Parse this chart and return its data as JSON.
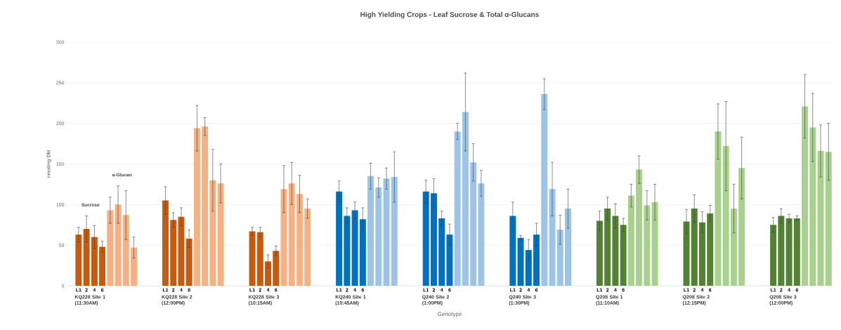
{
  "chart_data": {
    "type": "bar",
    "title": "High Yielding Crops - Leaf Sucrose & Total α-Glucans",
    "xlabel": "Genotype",
    "ylabel": "nmol/mg DM",
    "categories": [
      "L1",
      "2",
      "4",
      "6",
      null,
      null,
      null,
      null,
      null,
      null,
      null,
      "L1",
      "2",
      "4",
      "6",
      null,
      null,
      null,
      null,
      null,
      null,
      null,
      "L1",
      "2",
      "4",
      "6",
      null,
      null,
      null,
      null,
      null,
      null,
      null,
      "L1",
      "2",
      "4",
      "6",
      null,
      null,
      null,
      null,
      null,
      null,
      null,
      "L1",
      "2",
      "4",
      "6",
      null,
      null,
      null,
      null,
      null,
      null,
      null,
      "L1",
      "2",
      "4",
      "6",
      null,
      null,
      null,
      null,
      null,
      null,
      null,
      "L1",
      "2",
      "4",
      "6",
      null,
      null,
      null,
      null,
      null,
      null,
      null,
      "L1",
      "2",
      "4",
      "6",
      null,
      null,
      null,
      null,
      null,
      null,
      null,
      "L1",
      "2",
      "4",
      "6",
      null,
      null,
      null,
      null
    ],
    "values": [
      63,
      70,
      60,
      48,
      93,
      100,
      87,
      47,
      null,
      null,
      null,
      105,
      81,
      85,
      58,
      194,
      196,
      130,
      126,
      null,
      null,
      null,
      67,
      66,
      30,
      43,
      119,
      126,
      113,
      95,
      null,
      null,
      null,
      116,
      86,
      93,
      82,
      135,
      121,
      132,
      134,
      null,
      null,
      null,
      116,
      114,
      83,
      63,
      190,
      214,
      152,
      126,
      null,
      null,
      null,
      86,
      59,
      44,
      63,
      236,
      119,
      69,
      95,
      null,
      null,
      null,
      80,
      95,
      86,
      75,
      111,
      143,
      99,
      103,
      null,
      null,
      null,
      79,
      95,
      78,
      89,
      190,
      172,
      95,
      145,
      null,
      null,
      null,
      75,
      86,
      83,
      83,
      221,
      195,
      166,
      165
    ],
    "errors": [
      9,
      16,
      14,
      7,
      16,
      23,
      30,
      13,
      null,
      null,
      null,
      17,
      9,
      11,
      11,
      28,
      11,
      38,
      24,
      null,
      null,
      null,
      5,
      6,
      8,
      6,
      29,
      26,
      23,
      12,
      null,
      null,
      null,
      13,
      10,
      10,
      14,
      16,
      12,
      13,
      31,
      null,
      null,
      null,
      14,
      18,
      9,
      13,
      10,
      48,
      23,
      16,
      null,
      null,
      null,
      17,
      3,
      13,
      14,
      19,
      33,
      18,
      24,
      null,
      null,
      null,
      12,
      14,
      15,
      8,
      14,
      17,
      18,
      22,
      null,
      null,
      null,
      15,
      17,
      13,
      10,
      34,
      55,
      30,
      38,
      null,
      null,
      null,
      9,
      9,
      5,
      3,
      39,
      42,
      32,
      35
    ],
    "colors": [
      "#c55a11",
      "#c55a11",
      "#c55a11",
      "#c55a11",
      "#f4b183",
      "#f4b183",
      "#f4b183",
      "#f4b183",
      null,
      null,
      null,
      "#c55a11",
      "#c55a11",
      "#c55a11",
      "#c55a11",
      "#f4b183",
      "#f4b183",
      "#f4b183",
      "#f4b183",
      null,
      null,
      null,
      "#c55a11",
      "#c55a11",
      "#c55a11",
      "#c55a11",
      "#f4b183",
      "#f4b183",
      "#f4b183",
      "#f4b183",
      null,
      null,
      null,
      "#0070c0",
      "#0070c0",
      "#0070c0",
      "#0070c0",
      "#9dc3e6",
      "#9dc3e6",
      "#9dc3e6",
      "#9dc3e6",
      null,
      null,
      null,
      "#0070c0",
      "#0070c0",
      "#0070c0",
      "#0070c0",
      "#9dc3e6",
      "#9dc3e6",
      "#9dc3e6",
      "#9dc3e6",
      null,
      null,
      null,
      "#0070c0",
      "#0070c0",
      "#0070c0",
      "#0070c0",
      "#9dc3e6",
      "#9dc3e6",
      "#9dc3e6",
      "#9dc3e6",
      null,
      null,
      null,
      "#548235",
      "#548235",
      "#548235",
      "#548235",
      "#a9d18e",
      "#a9d18e",
      "#a9d18e",
      "#a9d18e",
      null,
      null,
      null,
      "#548235",
      "#548235",
      "#548235",
      "#548235",
      "#a9d18e",
      "#a9d18e",
      "#a9d18e",
      "#a9d18e",
      null,
      null,
      null,
      "#548235",
      "#548235",
      "#548235",
      "#548235",
      "#a9d18e",
      "#a9d18e",
      "#a9d18e",
      "#a9d18e"
    ],
    "ylim": [
      0,
      300
    ],
    "yticks": [
      0,
      50,
      100,
      150,
      200,
      250,
      300
    ],
    "grid": "y",
    "annotations": [
      "Sucrose",
      "α-Glucan",
      "KQ228 Site 1 (11:30AM)",
      "KQ228 Site 2 (12:00PM)",
      "KQ228 Site 3 (10:15AM)",
      "KQ240 Site 1 (10:45AM)",
      "Q240 Site 2 (1:00PM)",
      "Q240 Site 3 (1:30PM)",
      "Q208 Site 1 (11:10AM)",
      "Q208 Site 2 (12:15PM)",
      "Q208 Site 3 (12:00PM)"
    ]
  }
}
